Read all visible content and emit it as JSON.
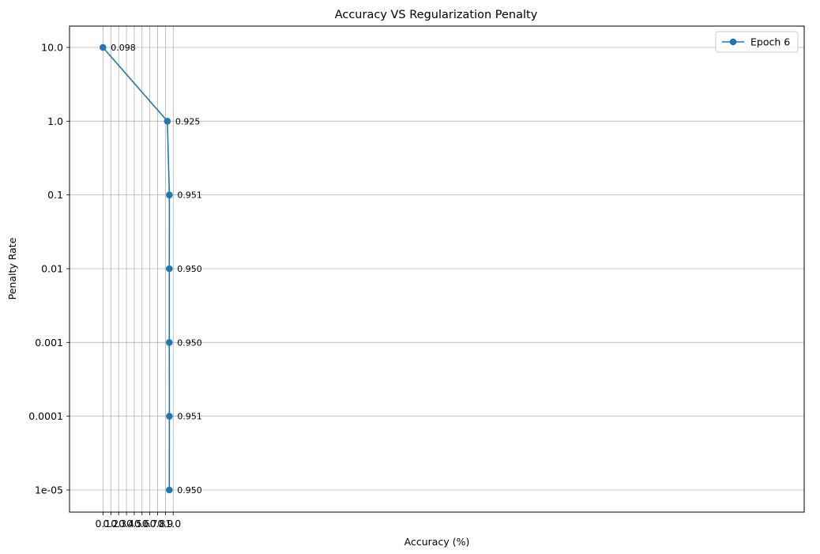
{
  "chart_data": {
    "type": "line",
    "title": "Accuracy VS Regularization Penalty",
    "xlabel": "Accuracy (%)",
    "ylabel": "Penalty Rate",
    "xlim": [
      0.056,
      1.0
    ],
    "x_ticks": [
      "0.1",
      "0.2",
      "0.3",
      "0.4",
      "0.5",
      "0.6",
      "0.7",
      "0.8",
      "0.9",
      "1.0"
    ],
    "y_ticks": [
      "10.0",
      "1.0",
      "0.1",
      "0.01",
      "0.001",
      "0.0001",
      "1e-05"
    ],
    "y_scale": "log",
    "grid": true,
    "legend_position": "top-right",
    "series": [
      {
        "name": "Epoch 6",
        "color": "#1f77b4",
        "marker": "circle",
        "points": [
          {
            "x": 0.098,
            "y": 10.0,
            "label": "0.098"
          },
          {
            "x": 0.925,
            "y": 1.0,
            "label": "0.925"
          },
          {
            "x": 0.951,
            "y": 0.1,
            "label": "0.951"
          },
          {
            "x": 0.95,
            "y": 0.01,
            "label": "0.950"
          },
          {
            "x": 0.95,
            "y": 0.001,
            "label": "0.950"
          },
          {
            "x": 0.951,
            "y": 0.0001,
            "label": "0.951"
          },
          {
            "x": 0.95,
            "y": 1e-05,
            "label": "0.950"
          }
        ]
      }
    ]
  }
}
